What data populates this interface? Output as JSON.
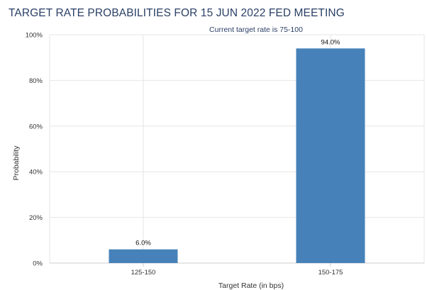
{
  "title": "TARGET RATE PROBABILITIES FOR 15 JUN 2022 FED MEETING",
  "subtitle": "Current target rate is 75-100",
  "colors": {
    "bar": "#4682b9",
    "title": "#2a3f66",
    "grid": "#e6e6e6"
  },
  "chart_data": {
    "type": "bar",
    "title": "TARGET RATE PROBABILITIES FOR 15 JUN 2022 FED MEETING",
    "subtitle": "Current target rate is 75-100",
    "xlabel": "Target Rate (in bps)",
    "ylabel": "Probability",
    "categories": [
      "125-150",
      "150-175"
    ],
    "values": [
      6.0,
      94.0
    ],
    "data_labels": [
      "6.0%",
      "94.0%"
    ],
    "ylim": [
      0,
      100
    ],
    "yticks": [
      0,
      20,
      40,
      60,
      80,
      100
    ],
    "ytick_labels": [
      "0%",
      "20%",
      "40%",
      "60%",
      "80%",
      "100%"
    ],
    "grid": true,
    "legend": "none"
  }
}
